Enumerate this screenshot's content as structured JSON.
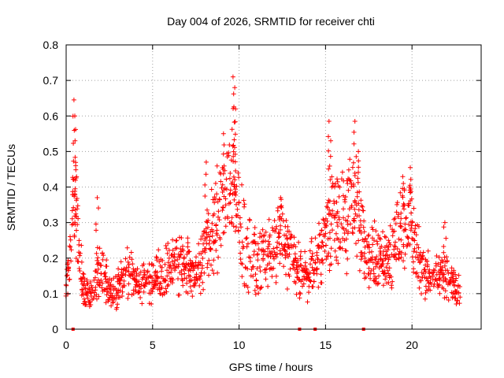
{
  "chart_data": {
    "type": "scatter",
    "title": "Day 004 of 2026, SRMTID for receiver chti",
    "xlabel": "GPS time / hours",
    "ylabel": "SRMTID / TECUs",
    "xlim": [
      0,
      24
    ],
    "ylim": [
      0,
      0.8
    ],
    "xticks": [
      0,
      5,
      10,
      15,
      20
    ],
    "xtick_labels": [
      "0",
      "5",
      "10",
      "15",
      "20"
    ],
    "yticks": [
      0,
      0.1,
      0.2,
      0.3,
      0.4,
      0.5,
      0.6,
      0.7,
      0.8
    ],
    "ytick_labels": [
      "0",
      "0.1",
      "0.2",
      "0.3",
      "0.4",
      "0.5",
      "0.6",
      "0.7",
      "0.8"
    ],
    "grid": true,
    "marker": "+",
    "color": "#ff0000",
    "zero_markers_x": [
      0.4,
      13.5,
      14.4,
      17.2
    ],
    "series": [
      {
        "name": "SRMTID",
        "profile": [
          [
            0.0,
            0.12
          ],
          [
            0.2,
            0.15
          ],
          [
            0.4,
            0.35
          ],
          [
            0.6,
            0.3
          ],
          [
            0.8,
            0.18
          ],
          [
            1.0,
            0.12
          ],
          [
            1.3,
            0.09
          ],
          [
            1.7,
            0.12
          ],
          [
            2.0,
            0.18
          ],
          [
            2.5,
            0.11
          ],
          [
            3.0,
            0.12
          ],
          [
            3.5,
            0.16
          ],
          [
            4.0,
            0.14
          ],
          [
            4.5,
            0.13
          ],
          [
            5.0,
            0.15
          ],
          [
            5.5,
            0.15
          ],
          [
            6.0,
            0.18
          ],
          [
            6.5,
            0.19
          ],
          [
            7.0,
            0.17
          ],
          [
            7.5,
            0.16
          ],
          [
            8.0,
            0.22
          ],
          [
            8.5,
            0.28
          ],
          [
            9.0,
            0.33
          ],
          [
            9.5,
            0.42
          ],
          [
            9.9,
            0.32
          ],
          [
            10.5,
            0.22
          ],
          [
            11.0,
            0.19
          ],
          [
            11.5,
            0.2
          ],
          [
            12.0,
            0.22
          ],
          [
            12.5,
            0.27
          ],
          [
            13.0,
            0.2
          ],
          [
            13.5,
            0.16
          ],
          [
            14.0,
            0.16
          ],
          [
            14.5,
            0.18
          ],
          [
            15.0,
            0.27
          ],
          [
            15.5,
            0.3
          ],
          [
            16.0,
            0.3
          ],
          [
            16.5,
            0.35
          ],
          [
            17.0,
            0.3
          ],
          [
            17.5,
            0.22
          ],
          [
            18.0,
            0.19
          ],
          [
            18.5,
            0.19
          ],
          [
            19.0,
            0.23
          ],
          [
            19.5,
            0.32
          ],
          [
            19.9,
            0.28
          ],
          [
            20.5,
            0.18
          ],
          [
            21.0,
            0.15
          ],
          [
            21.5,
            0.14
          ],
          [
            22.0,
            0.16
          ],
          [
            22.5,
            0.12
          ],
          [
            22.8,
            0.1
          ]
        ],
        "peaks": [
          [
            0.45,
            0.645
          ],
          [
            0.5,
            0.6
          ],
          [
            0.55,
            0.46
          ],
          [
            1.8,
            0.37
          ],
          [
            8.1,
            0.47
          ],
          [
            9.1,
            0.55
          ],
          [
            9.65,
            0.71
          ],
          [
            9.75,
            0.68
          ],
          [
            9.8,
            0.62
          ],
          [
            12.4,
            0.37
          ],
          [
            15.2,
            0.585
          ],
          [
            15.3,
            0.53
          ],
          [
            16.7,
            0.585
          ],
          [
            16.9,
            0.5
          ],
          [
            19.9,
            0.455
          ],
          [
            19.5,
            0.41
          ],
          [
            21.9,
            0.3
          ]
        ]
      }
    ]
  }
}
